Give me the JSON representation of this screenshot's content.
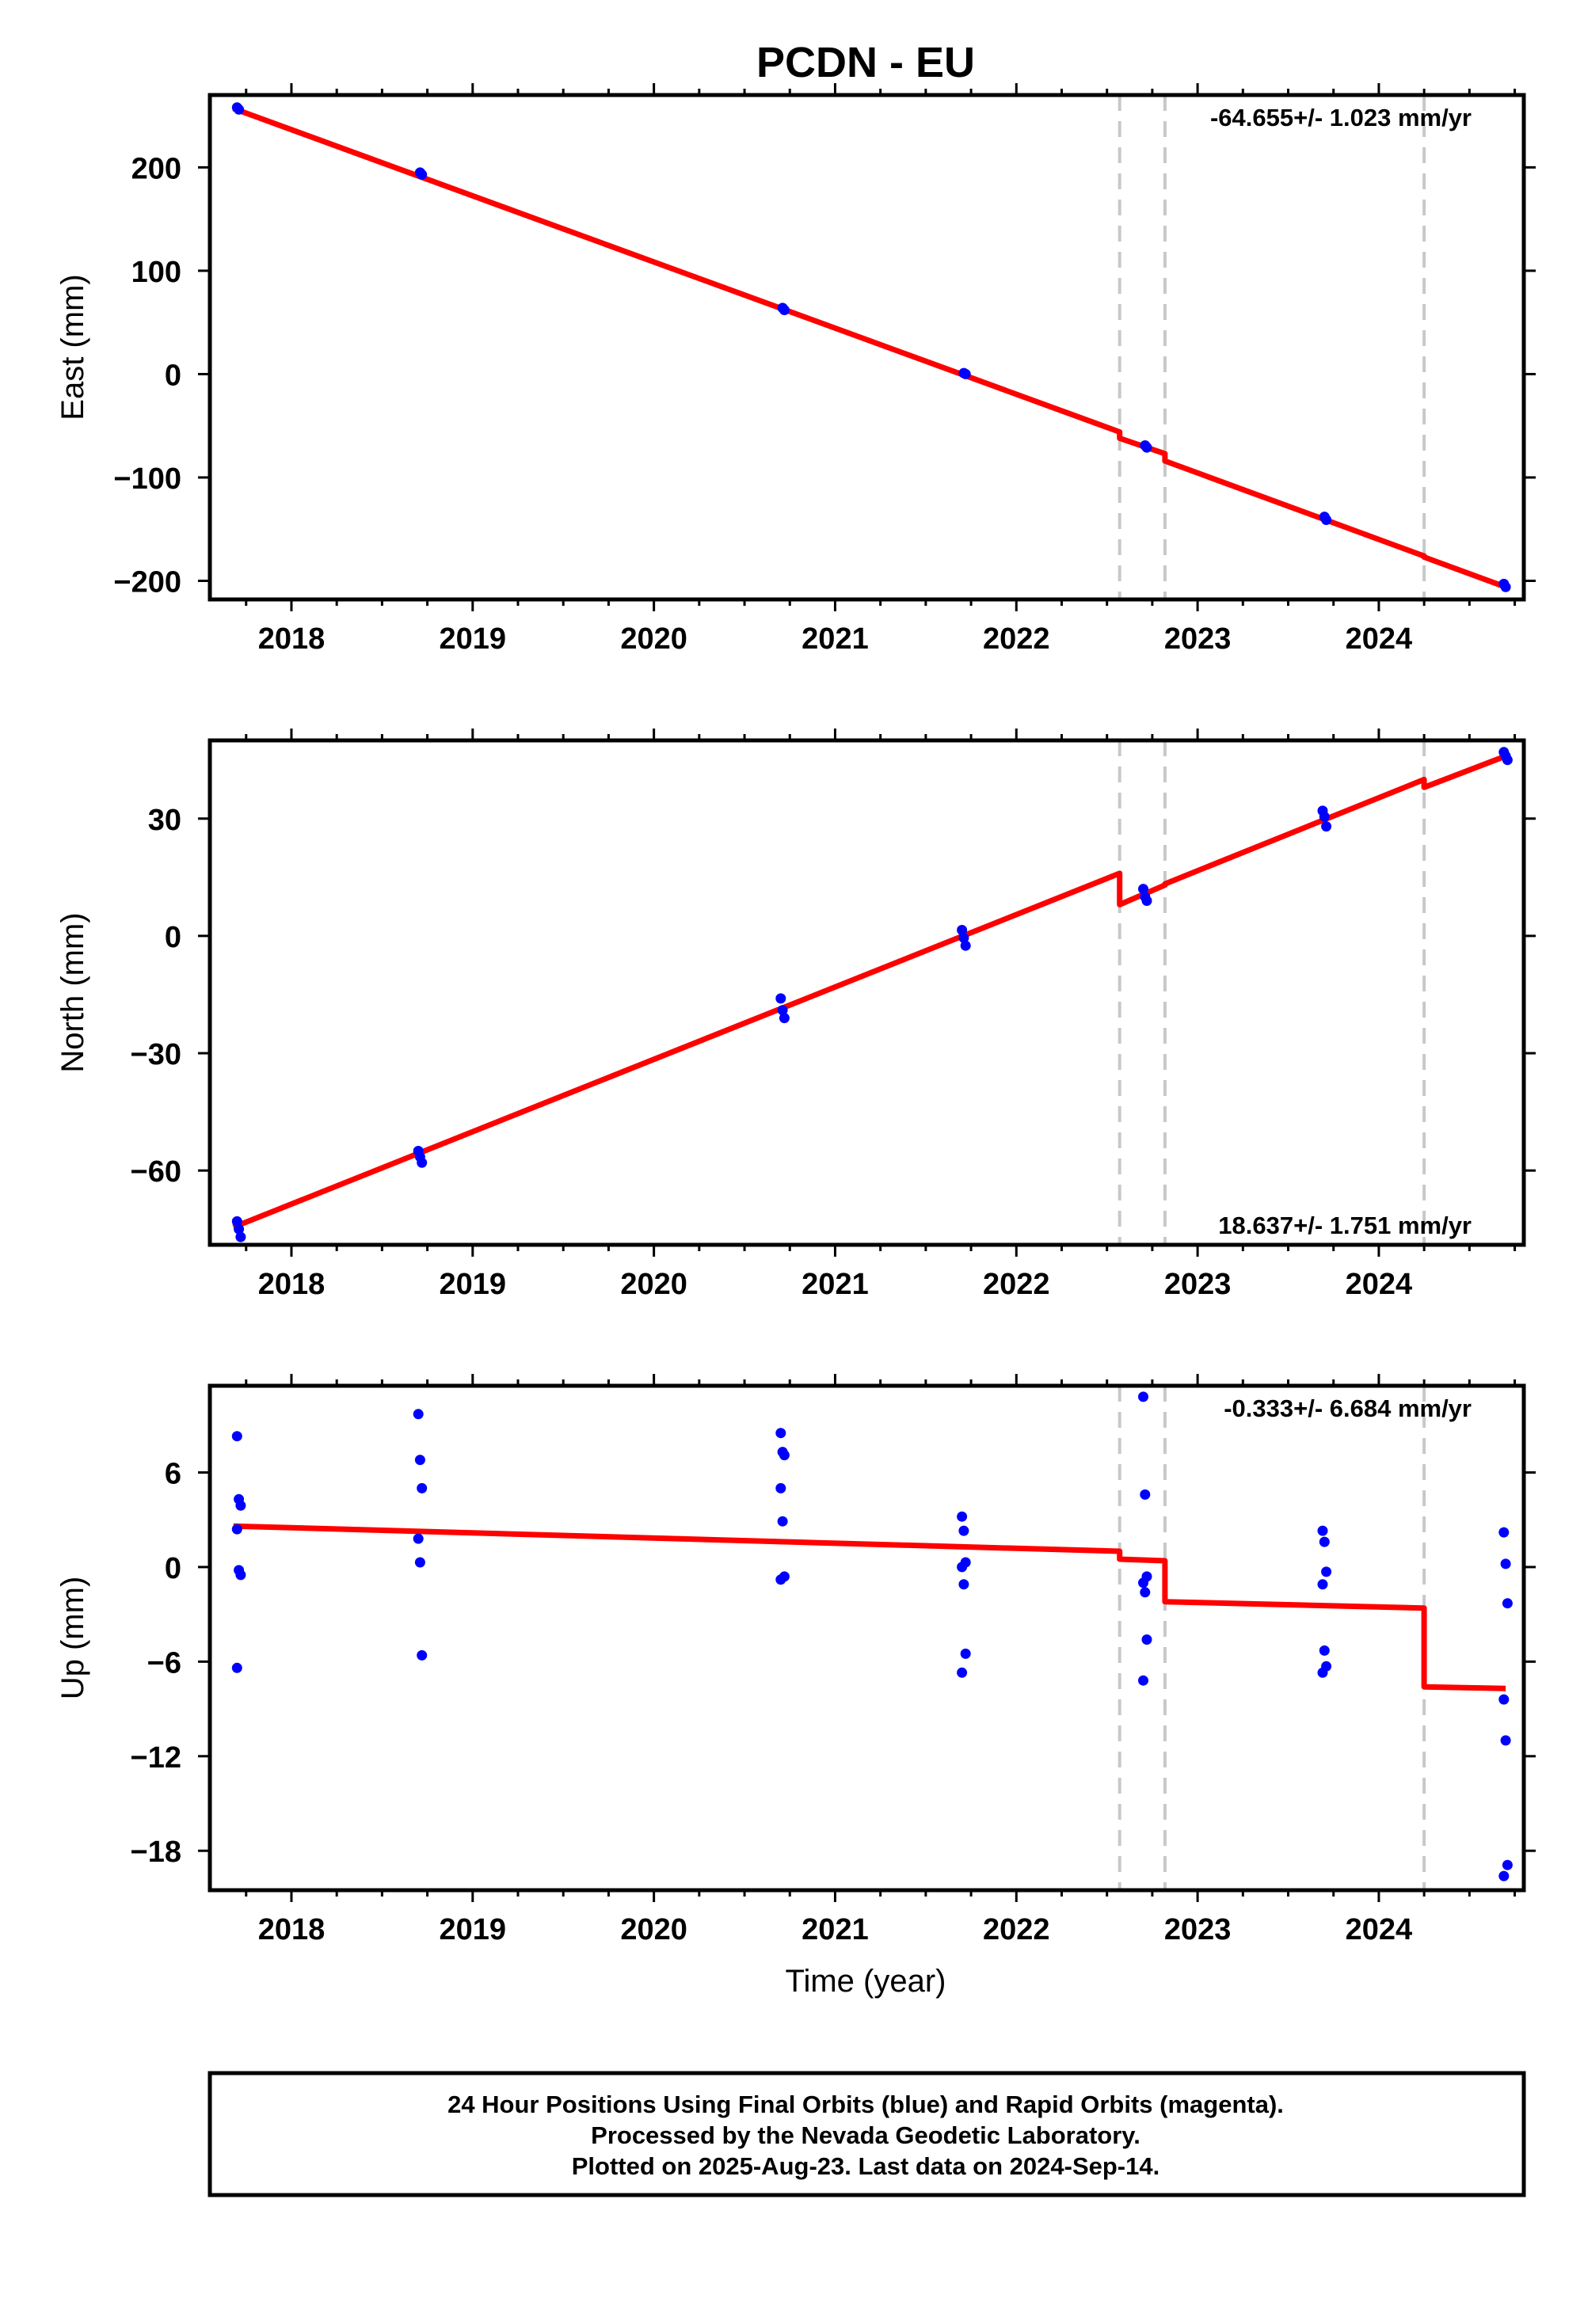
{
  "title": "PCDN - EU",
  "colors": {
    "fit": "#ff0000",
    "final_orbits": "#0000ff",
    "offset_line": "#c8c8c8",
    "frame": "#000000"
  },
  "chart_data": [
    {
      "type": "scatter",
      "component": "east",
      "ylabel": "East (mm)",
      "xlabel": "",
      "xlim": [
        2017.55,
        2024.8
      ],
      "ylim": [
        -218,
        270
      ],
      "x_ticks": [
        2018,
        2019,
        2020,
        2021,
        2022,
        2023,
        2024
      ],
      "y_ticks": [
        -200,
        -100,
        0,
        100,
        200
      ],
      "y_tick_labels": [
        "−200",
        "−100",
        "0",
        "100",
        "200"
      ],
      "rate_label": "-64.655+/- 1.023 mm/yr",
      "rate_position": "top-right",
      "offsets": [
        2022.57,
        2022.82,
        2024.25
      ],
      "fit": [
        [
          2017.68,
          257
        ],
        [
          2022.57,
          -56
        ],
        [
          2022.57,
          -62
        ],
        [
          2022.82,
          -77
        ],
        [
          2022.82,
          -84
        ],
        [
          2024.25,
          -176
        ],
        [
          2024.25,
          -177
        ],
        [
          2024.7,
          -206
        ]
      ],
      "points": [
        [
          2017.7,
          258
        ],
        [
          2017.71,
          256
        ],
        [
          2018.71,
          195
        ],
        [
          2018.72,
          193
        ],
        [
          2020.71,
          64
        ],
        [
          2020.72,
          62
        ],
        [
          2021.71,
          1
        ],
        [
          2021.72,
          0
        ],
        [
          2022.71,
          -69
        ],
        [
          2022.72,
          -71
        ],
        [
          2023.7,
          -138
        ],
        [
          2023.71,
          -141
        ],
        [
          2024.69,
          -203
        ],
        [
          2024.7,
          -206
        ]
      ]
    },
    {
      "type": "scatter",
      "component": "north",
      "ylabel": "North (mm)",
      "xlabel": "",
      "xlim": [
        2017.55,
        2024.8
      ],
      "ylim": [
        -79,
        50
      ],
      "x_ticks": [
        2018,
        2019,
        2020,
        2021,
        2022,
        2023,
        2024
      ],
      "y_ticks": [
        -60,
        -30,
        0,
        30
      ],
      "y_tick_labels": [
        "−60",
        "−30",
        "0",
        "30"
      ],
      "rate_label": "18.637+/- 1.751 mm/yr",
      "rate_position": "bottom-right",
      "offsets": [
        2022.57,
        2022.82,
        2024.25
      ],
      "fit": [
        [
          2017.68,
          -74.5
        ],
        [
          2022.57,
          16
        ],
        [
          2022.57,
          8
        ],
        [
          2022.82,
          13
        ],
        [
          2022.82,
          13.3
        ],
        [
          2024.25,
          40
        ],
        [
          2024.25,
          38
        ],
        [
          2024.7,
          46
        ]
      ],
      "points": [
        [
          2017.7,
          -73
        ],
        [
          2017.71,
          -75
        ],
        [
          2017.72,
          -77
        ],
        [
          2018.7,
          -55
        ],
        [
          2018.71,
          -56.5
        ],
        [
          2018.72,
          -58
        ],
        [
          2020.7,
          -16
        ],
        [
          2020.71,
          -19
        ],
        [
          2020.72,
          -21
        ],
        [
          2021.7,
          1.5
        ],
        [
          2021.71,
          -0.5
        ],
        [
          2021.72,
          -2.5
        ],
        [
          2022.7,
          12
        ],
        [
          2022.71,
          10
        ],
        [
          2022.72,
          9
        ],
        [
          2023.69,
          32
        ],
        [
          2023.7,
          30.5
        ],
        [
          2023.71,
          28
        ],
        [
          2024.69,
          47
        ],
        [
          2024.7,
          46
        ],
        [
          2024.71,
          45
        ]
      ]
    },
    {
      "type": "scatter",
      "component": "up",
      "ylabel": "Up (mm)",
      "xlabel": "Time (year)",
      "xlim": [
        2017.55,
        2024.8
      ],
      "ylim": [
        -20.5,
        11.5
      ],
      "x_ticks": [
        2018,
        2019,
        2020,
        2021,
        2022,
        2023,
        2024
      ],
      "y_ticks": [
        -18,
        -12,
        -6,
        0,
        6
      ],
      "y_tick_labels": [
        "−18",
        "−12",
        "−6",
        "0",
        "6"
      ],
      "rate_label": "-0.333+/- 6.684 mm/yr",
      "rate_position": "top-right",
      "offsets": [
        2022.57,
        2022.82,
        2024.25
      ],
      "fit": [
        [
          2017.68,
          2.6
        ],
        [
          2022.57,
          1.0
        ],
        [
          2022.57,
          0.5
        ],
        [
          2022.82,
          0.4
        ],
        [
          2022.82,
          -2.2
        ],
        [
          2024.25,
          -2.6
        ],
        [
          2024.25,
          -7.6
        ],
        [
          2024.7,
          -7.7
        ]
      ],
      "points": [
        [
          2017.7,
          8.3
        ],
        [
          2017.71,
          4.3
        ],
        [
          2017.72,
          3.9
        ],
        [
          2017.7,
          2.4
        ],
        [
          2017.71,
          -0.2
        ],
        [
          2017.72,
          -0.5
        ],
        [
          2017.7,
          -6.4
        ],
        [
          2018.7,
          9.7
        ],
        [
          2018.71,
          6.8
        ],
        [
          2018.72,
          5.0
        ],
        [
          2018.7,
          1.8
        ],
        [
          2018.71,
          0.3
        ],
        [
          2018.72,
          -5.6
        ],
        [
          2020.7,
          8.5
        ],
        [
          2020.71,
          7.3
        ],
        [
          2020.72,
          7.1
        ],
        [
          2020.7,
          5.0
        ],
        [
          2020.71,
          2.9
        ],
        [
          2020.72,
          -0.6
        ],
        [
          2020.7,
          -0.8
        ],
        [
          2021.7,
          3.2
        ],
        [
          2021.71,
          2.3
        ],
        [
          2021.72,
          0.3
        ],
        [
          2021.7,
          0.0
        ],
        [
          2021.71,
          -1.1
        ],
        [
          2021.72,
          -5.5
        ],
        [
          2021.7,
          -6.7
        ],
        [
          2022.7,
          10.8
        ],
        [
          2022.71,
          4.6
        ],
        [
          2022.72,
          -0.6
        ],
        [
          2022.7,
          -1.0
        ],
        [
          2022.71,
          -1.6
        ],
        [
          2022.72,
          -4.6
        ],
        [
          2022.7,
          -7.2
        ],
        [
          2023.69,
          2.3
        ],
        [
          2023.7,
          1.6
        ],
        [
          2023.71,
          -0.3
        ],
        [
          2023.69,
          -1.1
        ],
        [
          2023.7,
          -5.3
        ],
        [
          2023.71,
          -6.3
        ],
        [
          2023.69,
          -6.7
        ],
        [
          2024.69,
          2.2
        ],
        [
          2024.7,
          0.2
        ],
        [
          2024.71,
          -2.3
        ],
        [
          2024.69,
          -8.4
        ],
        [
          2024.7,
          -11.0
        ],
        [
          2024.71,
          -18.9
        ],
        [
          2024.69,
          -19.6
        ]
      ]
    }
  ],
  "footer": {
    "line1": "24 Hour Positions Using Final Orbits (blue) and Rapid Orbits (magenta).",
    "line2": "Processed by the Nevada Geodetic Laboratory.",
    "line3": "Plotted on 2025-Aug-23. Last data on 2024-Sep-14."
  }
}
